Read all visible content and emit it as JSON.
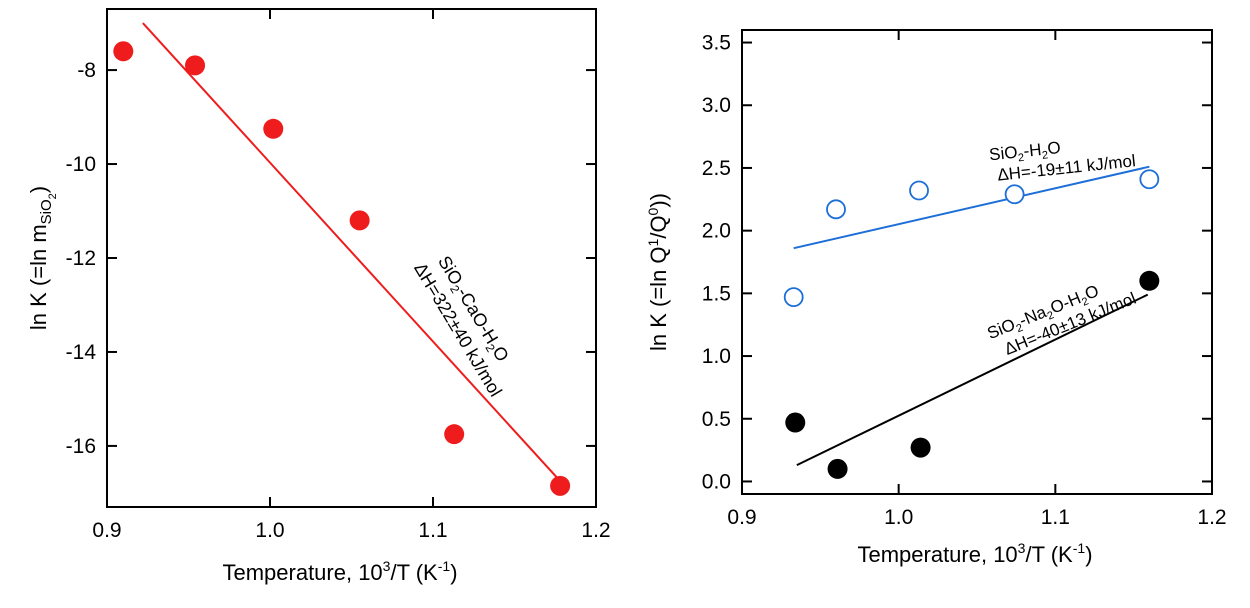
{
  "chart_data": [
    {
      "type": "scatter",
      "xlabel_main": "Temperature, 10",
      "xlabel_sup": "3",
      "xlabel_tail": "/T (K",
      "xlabel_sup2": "-1",
      "xlabel_close": ")",
      "ylabel_main": "ln K (=ln m",
      "ylabel_sub": "SiO",
      "ylabel_sub2": "2",
      "ylabel_close": ")",
      "xlim": [
        0.9,
        1.2
      ],
      "ylim": [
        -17.3,
        -6.7
      ],
      "xticks": [
        "0.9",
        "1.0",
        "1.1",
        "1.2"
      ],
      "yticks": [
        "-8",
        "-10",
        "-12",
        "-14",
        "-16"
      ],
      "series": [
        {
          "color": "#ee1c1c",
          "marker": "filled-circle",
          "x": [
            0.91,
            0.954,
            1.002,
            1.055,
            1.113,
            1.178
          ],
          "y": [
            -7.6,
            -7.9,
            -9.25,
            -11.2,
            -15.75,
            -16.85
          ]
        }
      ],
      "fit_lines": [
        {
          "color": "#ee1c1c",
          "x": [
            0.922,
            1.182
          ],
          "y": [
            -7.0,
            -16.9
          ]
        }
      ],
      "annotation": {
        "line1": "SiO",
        "line1_sub": "2",
        "line1_tail": "-CaO-H",
        "line1_sub2": "2",
        "line1_end": "O",
        "line2": "ΔH=322±40 kJ/mol"
      }
    },
    {
      "type": "scatter",
      "xlabel_main": "Temperature, 10",
      "xlabel_sup": "3",
      "xlabel_tail": "/T (K",
      "xlabel_sup2": "-1",
      "xlabel_close": ")",
      "ylabel_main": "ln K (=ln Q",
      "ylabel_sup": "1",
      "ylabel_mid": "/Q",
      "ylabel_sup2": "0",
      "ylabel_close": "))",
      "xlim": [
        0.9,
        1.2
      ],
      "ylim": [
        -0.1,
        3.6
      ],
      "xticks": [
        "0.9",
        "1.0",
        "1.1",
        "1.2"
      ],
      "yticks": [
        "0.0",
        "0.5",
        "1.0",
        "1.5",
        "2.0",
        "2.5",
        "3.0",
        "3.5"
      ],
      "series": [
        {
          "color": "#1c6ed8",
          "marker": "open-circle",
          "x": [
            0.933,
            0.96,
            1.013,
            1.074,
            1.16
          ],
          "y": [
            1.47,
            2.17,
            2.32,
            2.29,
            2.41
          ]
        },
        {
          "color": "#000000",
          "marker": "filled-circle",
          "x": [
            0.934,
            0.961,
            1.014,
            1.16
          ],
          "y": [
            0.47,
            0.1,
            0.27,
            1.6
          ]
        }
      ],
      "fit_lines": [
        {
          "color": "#1c6ed8",
          "x": [
            0.933,
            1.16
          ],
          "y": [
            1.86,
            2.51
          ]
        },
        {
          "color": "#000000",
          "x": [
            0.935,
            1.159
          ],
          "y": [
            0.13,
            1.49
          ]
        }
      ],
      "annotation_blue": {
        "line1": "SiO",
        "line1_sub": "2",
        "line1_tail": "-H",
        "line1_sub2": "2",
        "line1_end": "O",
        "line2": "ΔH=-19±11 kJ/mol"
      },
      "annotation_black": {
        "line1": "SiO",
        "line1_sub": "2",
        "line1_tail": "-Na",
        "line1_sub2": "2",
        "line1_mid": "O-H",
        "line1_sub3": "2",
        "line1_end": "O",
        "line2": "ΔH=-40±13 kJ/mol"
      }
    }
  ]
}
